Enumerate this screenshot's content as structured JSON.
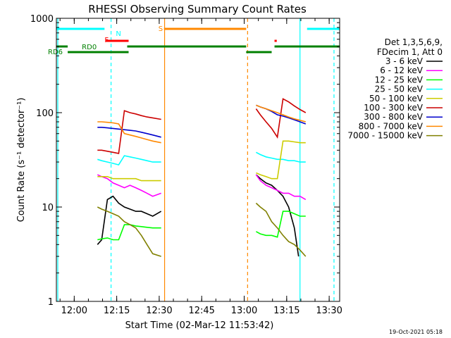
{
  "chart_data": {
    "type": "line",
    "title": "RHESSI Observing Summary Count Rates",
    "xlabel": "Start Time (02-Mar-12 11:53:42)",
    "ylabel": "Count Rate (s⁻¹ detector⁻¹)",
    "ylog": true,
    "ylim": [
      1,
      1000
    ],
    "xlim_minutes_after_start": [
      0,
      100
    ],
    "yticks": [
      {
        "value": 1,
        "label": "1"
      },
      {
        "value": 10,
        "label": "10"
      },
      {
        "value": 100,
        "label": "100"
      },
      {
        "value": 1000,
        "label": "1000"
      }
    ],
    "xticks": [
      {
        "minute": 6.3,
        "label": "12:00"
      },
      {
        "minute": 21.3,
        "label": "12:15"
      },
      {
        "minute": 36.3,
        "label": "12:30"
      },
      {
        "minute": 51.3,
        "label": "12:45"
      },
      {
        "minute": 66.3,
        "label": "13:00"
      },
      {
        "minute": 81.3,
        "label": "13:15"
      },
      {
        "minute": 96.3,
        "label": "13:30"
      }
    ],
    "legend_header": [
      "Det 1,3,5,6,9,",
      "FDecim 1, Att 0"
    ],
    "legend_position": "right",
    "series": [
      {
        "name": "3 - 6 keV",
        "color": "#000000",
        "segments": [
          {
            "x": [
              14.5,
              16,
              18,
              20,
              22,
              24,
              26,
              28,
              30,
              32,
              34,
              37
            ],
            "y": [
              4,
              4.5,
              12,
              13,
              11,
              10,
              9.5,
              9,
              9,
              8.5,
              8,
              9
            ]
          },
          {
            "x": [
              70.5,
              72,
              74,
              76,
              78,
              80,
              82,
              84,
              85.5
            ],
            "y": [
              22,
              20,
              18,
              17,
              15,
              13,
              10,
              6,
              3
            ]
          }
        ]
      },
      {
        "name": "6 - 12 keV",
        "color": "#ff00ff",
        "segments": [
          {
            "x": [
              14.5,
              16,
              18,
              20,
              22,
              24,
              26,
              28,
              30,
              32,
              34,
              37
            ],
            "y": [
              22,
              21,
              20,
              18,
              17,
              16,
              17,
              16,
              15,
              14,
              13,
              14
            ]
          },
          {
            "x": [
              70.5,
              72,
              74,
              76,
              78,
              80,
              82,
              84,
              86,
              88
            ],
            "y": [
              22,
              19,
              17,
              16,
              15,
              14,
              14,
              13,
              13,
              12
            ]
          }
        ]
      },
      {
        "name": "12 - 25 keV",
        "color": "#00ff00",
        "segments": [
          {
            "x": [
              14.5,
              16,
              18,
              20,
              22,
              24,
              26,
              28,
              30,
              32,
              34,
              37
            ],
            "y": [
              4.5,
              4.6,
              4.7,
              4.5,
              4.5,
              6.5,
              6.5,
              6.3,
              6.2,
              6.1,
              6,
              6
            ]
          },
          {
            "x": [
              70.5,
              72,
              74,
              76,
              78,
              80,
              82,
              84,
              86,
              88
            ],
            "y": [
              5.5,
              5.2,
              5,
              5,
              4.8,
              9,
              9,
              8.5,
              8,
              8
            ]
          }
        ]
      },
      {
        "name": "25 - 50 keV",
        "color": "#00ffff",
        "segments": [
          {
            "x": [
              14.5,
              16,
              18,
              20,
              22,
              24,
              26,
              28,
              30,
              32,
              34,
              37
            ],
            "y": [
              32,
              31,
              30,
              29,
              28,
              35,
              34,
              33,
              32,
              31,
              30,
              30
            ]
          },
          {
            "x": [
              70.5,
              72,
              74,
              76,
              78,
              80,
              82,
              84,
              86,
              88
            ],
            "y": [
              38,
              36,
              34,
              33,
              32,
              32,
              31,
              31,
              30,
              30
            ]
          }
        ]
      },
      {
        "name": "50 - 100 keV",
        "color": "#cccc00",
        "segments": [
          {
            "x": [
              14.5,
              16,
              18,
              20,
              22,
              24,
              26,
              28,
              30,
              32,
              34,
              37
            ],
            "y": [
              21,
              21,
              21,
              20,
              20,
              20,
              20,
              20,
              19,
              19,
              19,
              19
            ]
          },
          {
            "x": [
              70.5,
              72,
              74,
              76,
              78,
              80,
              82,
              84,
              86,
              88
            ],
            "y": [
              23,
              22,
              21,
              20,
              20,
              50,
              50,
              49,
              48,
              48
            ]
          }
        ]
      },
      {
        "name": "100 - 300 keV",
        "color": "#cc0000",
        "segments": [
          {
            "x": [
              14.5,
              16,
              18,
              20,
              22,
              24,
              26,
              28,
              30,
              32,
              34,
              37
            ],
            "y": [
              40,
              40,
              39,
              38,
              37,
              105,
              100,
              97,
              93,
              90,
              88,
              85
            ]
          },
          {
            "x": [
              70.5,
              72,
              74,
              76,
              78,
              80,
              82,
              84,
              86,
              88
            ],
            "y": [
              110,
              95,
              80,
              68,
              55,
              140,
              130,
              118,
              108,
              100
            ]
          }
        ]
      },
      {
        "name": "300 - 800 keV",
        "color": "#0000cc",
        "segments": [
          {
            "x": [
              14.5,
              16,
              18,
              20,
              22,
              24,
              26,
              28,
              30,
              32,
              34,
              37
            ],
            "y": [
              70,
              70,
              69,
              68,
              67,
              66,
              65,
              64,
              62,
              60,
              58,
              55
            ]
          },
          {
            "x": [
              70.5,
              72,
              74,
              76,
              78,
              80,
              82,
              84,
              86,
              88
            ],
            "y": [
              120,
              115,
              110,
              103,
              95,
              92,
              88,
              84,
              80,
              76
            ]
          }
        ]
      },
      {
        "name": "800 - 7000 keV",
        "color": "#ff8800",
        "segments": [
          {
            "x": [
              14.5,
              16,
              18,
              20,
              22,
              24,
              26,
              28,
              30,
              32,
              34,
              37
            ],
            "y": [
              80,
              80,
              79,
              78,
              76,
              60,
              58,
              56,
              54,
              52,
              50,
              48
            ]
          },
          {
            "x": [
              70.5,
              72,
              74,
              76,
              78,
              80,
              82,
              84,
              86,
              88
            ],
            "y": [
              120,
              115,
              110,
              105,
              100,
              95,
              90,
              86,
              83,
              80
            ]
          }
        ]
      },
      {
        "name": "7000 - 15000 keV",
        "color": "#808000",
        "segments": [
          {
            "x": [
              14.5,
              16,
              18,
              20,
              22,
              24,
              26,
              28,
              30,
              32,
              34,
              37
            ],
            "y": [
              10,
              9.5,
              9,
              8.5,
              8,
              7,
              6.5,
              6,
              5,
              4,
              3.2,
              3
            ]
          },
          {
            "x": [
              70.5,
              72,
              74,
              76,
              78,
              80,
              82,
              84,
              86,
              88
            ],
            "y": [
              11,
              10,
              9,
              7,
              6,
              5,
              4.3,
              4,
              3.5,
              3
            ]
          }
        ]
      }
    ],
    "state_bars": [
      {
        "label": "",
        "color": "#00ffff",
        "level": "top",
        "ranges": [
          [
            0,
            17
          ],
          [
            88.5,
            100
          ]
        ]
      },
      {
        "label": "",
        "color": "#ff0000",
        "level": "upper",
        "ranges": [
          [
            17.5,
            25.5
          ],
          [
            77,
            77.8
          ]
        ]
      },
      {
        "label": "",
        "color": "#ff8800",
        "level": "top",
        "ranges": [
          [
            38,
            67
          ]
        ]
      },
      {
        "label": "",
        "color": "#008000",
        "level": "middle",
        "ranges": [
          [
            0,
            4
          ],
          [
            25,
            67
          ],
          [
            77,
            100
          ]
        ]
      },
      {
        "label": "",
        "color": "#008000",
        "level": "lower",
        "ranges": [
          [
            4,
            25.5
          ],
          [
            67,
            76
          ]
        ]
      }
    ],
    "bar_labels": [
      {
        "text": "N",
        "color": "#00ffff",
        "minute": 21
      },
      {
        "text": "F",
        "color": "#ff0000",
        "minute": 17
      },
      {
        "text": "S",
        "color": "#ff8800",
        "minute": 36
      },
      {
        "text": "RD0",
        "color": "#008000",
        "minute": 9
      },
      {
        "text": "RD6",
        "color": "#008000",
        "minute": 0
      }
    ],
    "vertical_lines": [
      {
        "minute": 0.5,
        "color": "#00ffff",
        "style": "solid"
      },
      {
        "minute": 19.3,
        "color": "#00ffff",
        "style": "dashed"
      },
      {
        "minute": 38.2,
        "color": "#ff8800",
        "style": "solid"
      },
      {
        "minute": 67.5,
        "color": "#ff8800",
        "style": "dashed"
      },
      {
        "minute": 86,
        "color": "#00ffff",
        "style": "solid"
      },
      {
        "minute": 98,
        "color": "#00ffff",
        "style": "dashed"
      }
    ]
  },
  "footer": {
    "timestamp": "19-Oct-2021 05:18"
  }
}
